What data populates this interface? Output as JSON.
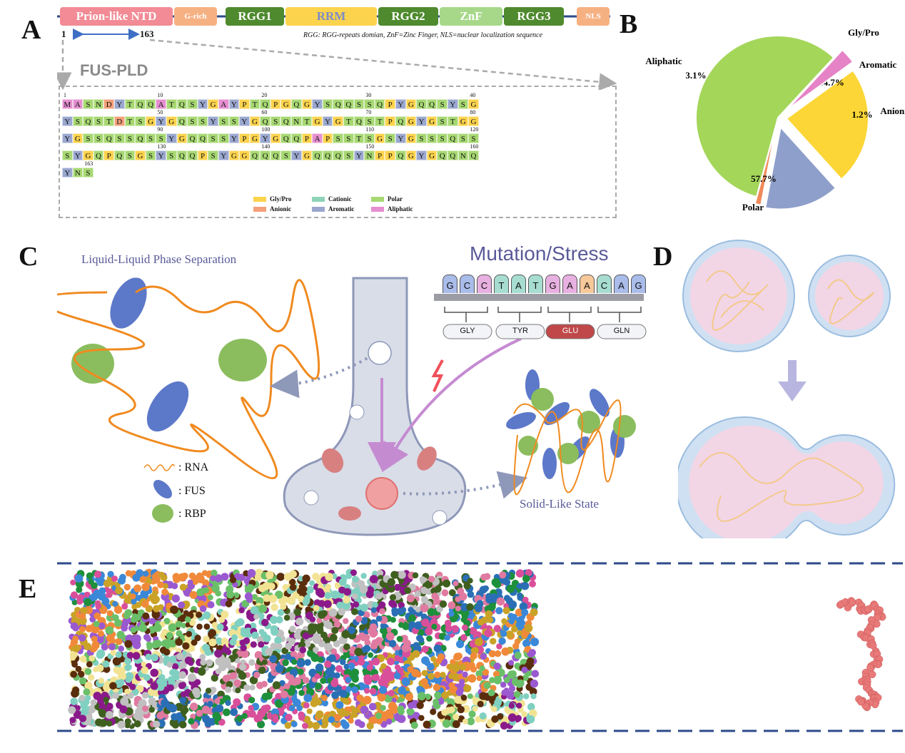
{
  "panels": {
    "A": "A",
    "B": "B",
    "C": "C",
    "D": "D",
    "E": "E"
  },
  "colors": {
    "glypro": "#fcd34d",
    "anionic": "#f4a07a",
    "cationic": "#8fd3b8",
    "aromatic": "#9aa7cf",
    "polar": "#a7d872",
    "aliphatic": "#e58fd0",
    "rgg": "#4f8a2e",
    "rrm": "#fcd34d",
    "znf": "#a7d88a",
    "nls": "#f6b183",
    "grich": "#f6b183",
    "ntd": "#f28b95"
  },
  "panel_a": {
    "domains": [
      {
        "label": "Prion-like NTD",
        "key": "ntd"
      },
      {
        "label": "G-rich",
        "key": "grich"
      },
      {
        "label": "RGG1",
        "key": "rgg1"
      },
      {
        "label": "RRM",
        "key": "rrm"
      },
      {
        "label": "RGG2",
        "key": "rgg2"
      },
      {
        "label": "ZnF",
        "key": "znf"
      },
      {
        "label": "RGG3",
        "key": "rgg3"
      },
      {
        "label": "NLS",
        "key": "nls"
      }
    ],
    "start_label": "1",
    "end_label": "163",
    "footnote": "RGG: RGG-repeats domian, ZnF=Zinc Finger, NLS=nuclear localization sequence",
    "region_title": "FUS-PLD",
    "sequence": "MASNDYTQQATQSYGAYPTQPGQGYSQQSSQPYGQQSYSGYSQSTDTSGYGQSSYSSYGQSQNTGYGTQSTPQGYGSTGGYGSSQSSQSSYGQQSSYPGYGQQPAPSSTSGSYGSSSQSSSYGQPQSGSYSQQPSYGGQQQSYGQQQSYNPPQGYGQQNQYNS",
    "row_numbers": [
      {
        "row": 0,
        "labels": [
          "1",
          "10",
          "20",
          "30",
          "40"
        ]
      },
      {
        "row": 1,
        "labels": [
          "50",
          "60",
          "70",
          "80"
        ]
      },
      {
        "row": 2,
        "labels": [
          "90",
          "100",
          "110",
          "120"
        ]
      },
      {
        "row": 3,
        "labels": [
          "130",
          "140",
          "150",
          "160"
        ]
      },
      {
        "row": 4,
        "labels": [
          "163"
        ]
      }
    ],
    "legend": [
      {
        "label": "Gly/Pro",
        "key": "glypro"
      },
      {
        "label": "Cationic",
        "key": "cationic"
      },
      {
        "label": "Polar",
        "key": "polar"
      },
      {
        "label": "Anionic",
        "key": "anionic"
      },
      {
        "label": "Aromatic",
        "key": "aromatic"
      },
      {
        "label": "Aliphatic",
        "key": "aliphatic"
      }
    ]
  },
  "chart_data": {
    "type": "pie",
    "slices": [
      {
        "label": "Gly/Pro",
        "value": 23.3,
        "text": "23.3%",
        "color": "#fcd636"
      },
      {
        "label": "Aromatic",
        "value": 14.7,
        "text": "14.7%",
        "color": "#8f9fcb"
      },
      {
        "label": "Anionic",
        "value": 1.2,
        "text": "1.2%",
        "color": "#f08a5a"
      },
      {
        "label": "Polar",
        "value": 57.7,
        "text": "57.7%",
        "color": "#a4d65a"
      },
      {
        "label": "Aliphatic",
        "value": 3.1,
        "text": "3.1%",
        "color": "#e583c6"
      }
    ]
  },
  "panel_c": {
    "llps_title": "Liquid-Liquid Phase Separation",
    "mutation_title": "Mutation/Stress",
    "codons": [
      "G",
      "C",
      "C",
      "T",
      "A",
      "T",
      "G",
      "A",
      "A",
      "C",
      "A",
      "G"
    ],
    "amino_acids": [
      "GLY",
      "TYR",
      "GLU",
      "GLN"
    ],
    "legend": [
      {
        "label": ": RNA"
      },
      {
        "label": ": FUS"
      },
      {
        "label": ": RBP"
      }
    ],
    "solid_title": "Solid-Like State"
  }
}
